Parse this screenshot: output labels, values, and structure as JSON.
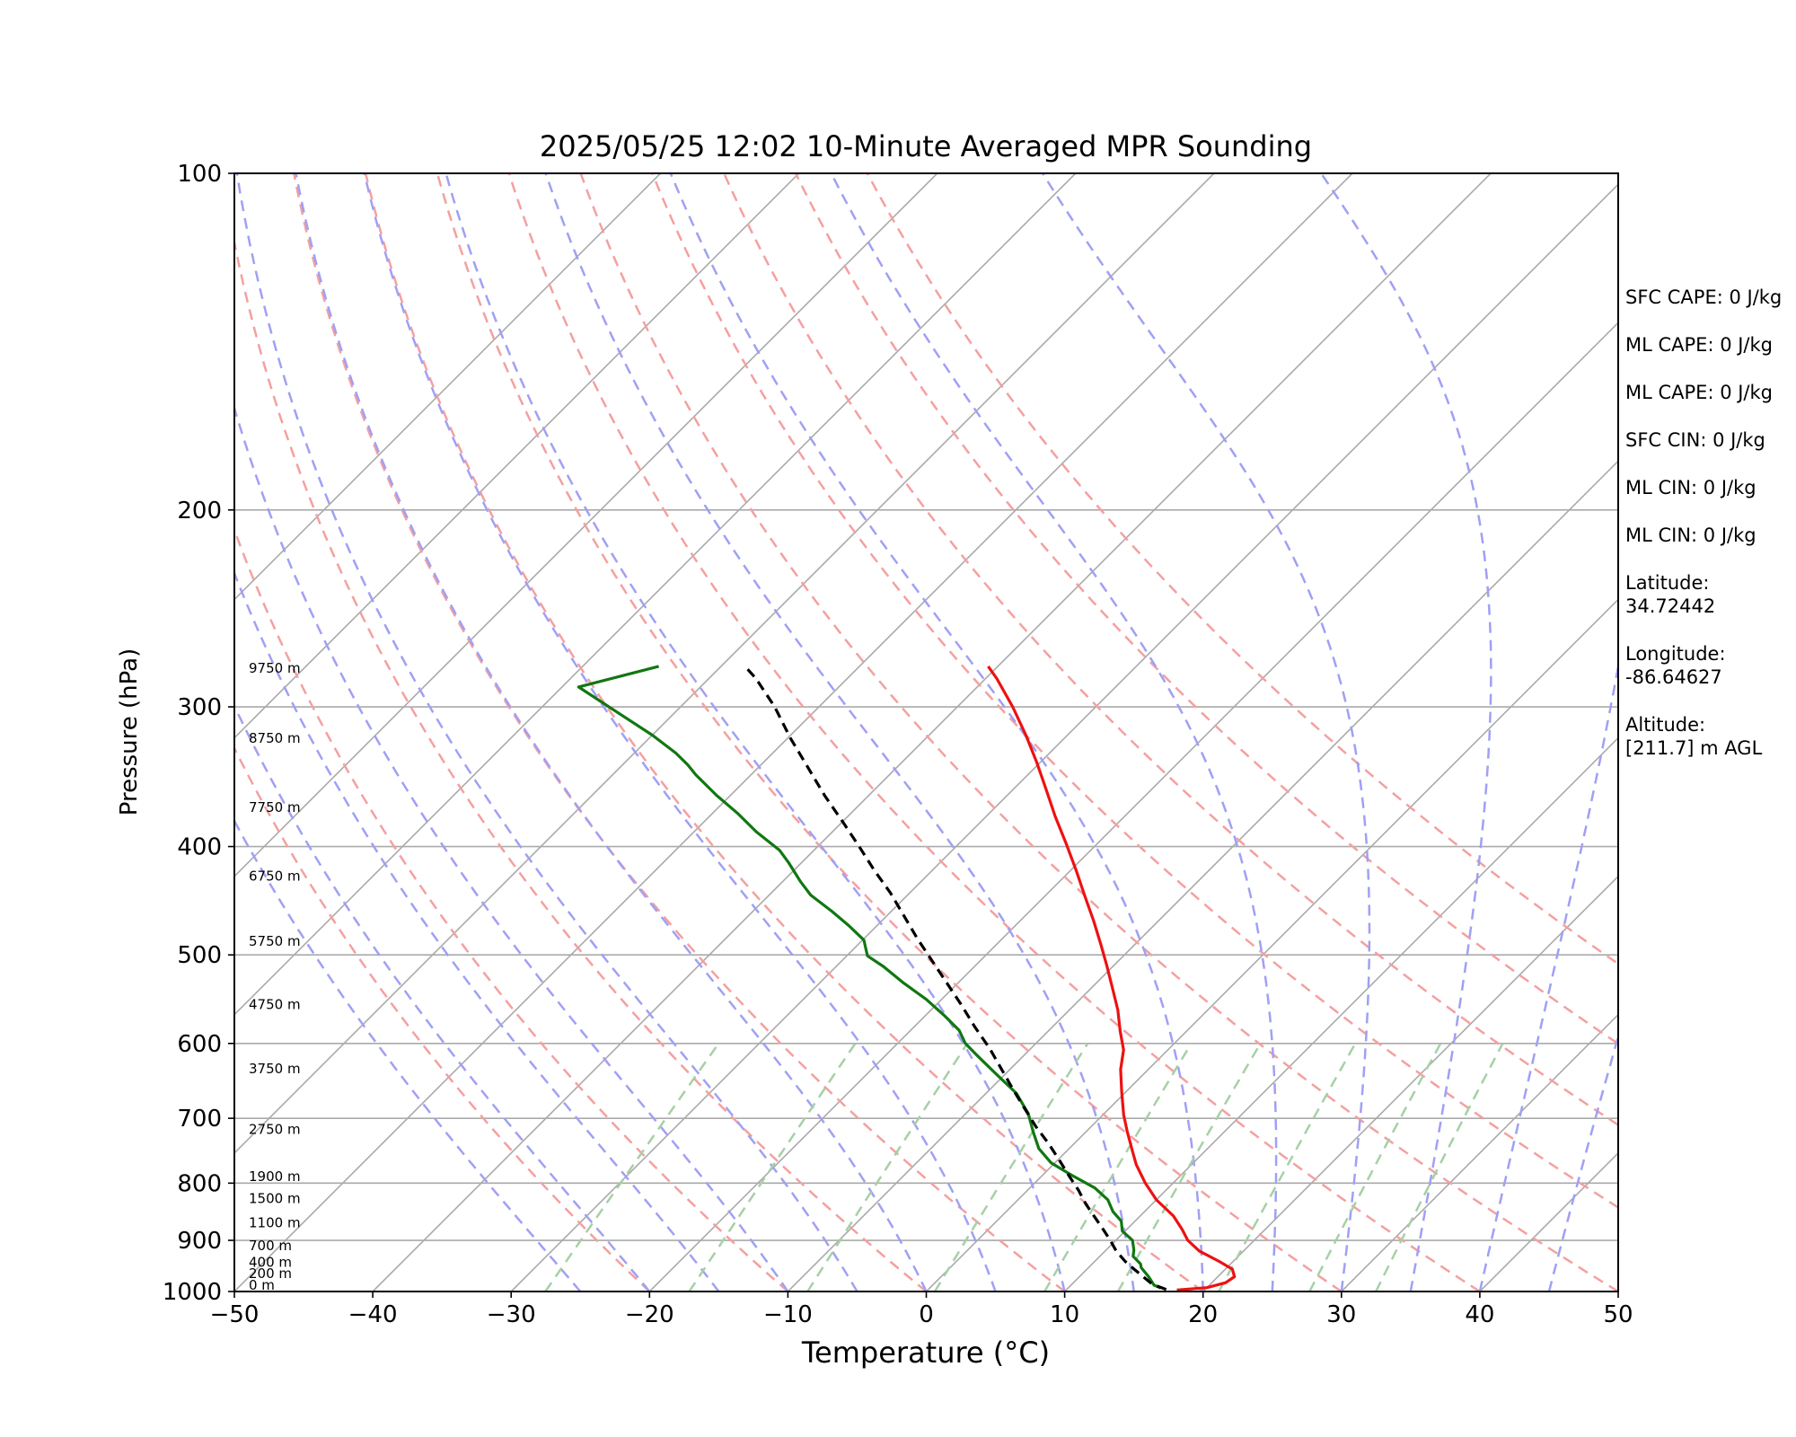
{
  "chart_data": {
    "type": "line",
    "chart_kind": "Skew-T log-P",
    "title": "2025/05/25 12:02 10-Minute Averaged MPR Sounding",
    "xlabel": "Temperature (°C)",
    "ylabel": "Pressure (hPa)",
    "xlim": [
      -50,
      50
    ],
    "ylim": [
      1000,
      100
    ],
    "y_scale": "log",
    "x_ticks": [
      "−50",
      "−40",
      "−30",
      "−20",
      "−10",
      "0",
      "10",
      "20",
      "30",
      "40",
      "50"
    ],
    "y_ticks": [
      "100",
      "200",
      "300",
      "400",
      "500",
      "600",
      "700",
      "800",
      "900",
      "1000"
    ],
    "y_tick_values": [
      100,
      200,
      300,
      400,
      500,
      600,
      700,
      800,
      900,
      1000
    ],
    "isotherm_temperatures": [
      -100,
      -90,
      -80,
      -70,
      -60,
      -50,
      -40,
      -30,
      -20,
      -10,
      0,
      10,
      20,
      30,
      40,
      50
    ],
    "dry_adiabat_thetas_c": [
      -20,
      -10,
      0,
      10,
      20,
      30,
      40,
      50,
      60,
      70,
      80,
      90
    ],
    "moist_adiabat_start_temps_c": [
      -25,
      -20,
      -15,
      -10,
      -5,
      0,
      5,
      10,
      15,
      20,
      25,
      30,
      35,
      40,
      45,
      50
    ],
    "mixing_ratio_lines_gkg": [
      0.4,
      1,
      2,
      4,
      7,
      10,
      16,
      24,
      32
    ],
    "height_labels": [
      {
        "label": "0 m",
        "pressure": 987
      },
      {
        "label": "200 m",
        "pressure": 964
      },
      {
        "label": "400 m",
        "pressure": 942
      },
      {
        "label": "700 m",
        "pressure": 910
      },
      {
        "label": "1100 m",
        "pressure": 868
      },
      {
        "label": "1500 m",
        "pressure": 826
      },
      {
        "label": "1900 m",
        "pressure": 789
      },
      {
        "label": "2750 m",
        "pressure": 716
      },
      {
        "label": "3750 m",
        "pressure": 632
      },
      {
        "label": "4750 m",
        "pressure": 554
      },
      {
        "label": "5750 m",
        "pressure": 486
      },
      {
        "label": "6750 m",
        "pressure": 425
      },
      {
        "label": "7750 m",
        "pressure": 369
      },
      {
        "label": "8750 m",
        "pressure": 320
      },
      {
        "label": "9750 m",
        "pressure": 277
      }
    ],
    "series": [
      {
        "role": "temperature",
        "color": "#ee1111",
        "style": "solid",
        "points": [
          [
            18.0,
            997
          ],
          [
            20.0,
            992
          ],
          [
            21.0,
            982
          ],
          [
            21.2,
            970
          ],
          [
            20.5,
            955
          ],
          [
            19.0,
            940
          ],
          [
            16.8,
            920
          ],
          [
            15.2,
            900
          ],
          [
            14.0,
            880
          ],
          [
            12.4,
            856
          ],
          [
            10.0,
            828
          ],
          [
            8.0,
            800
          ],
          [
            6.0,
            770
          ],
          [
            4.7,
            748
          ],
          [
            3.0,
            720
          ],
          [
            1.5,
            695
          ],
          [
            -0.3,
            663
          ],
          [
            -2.0,
            633
          ],
          [
            -3.2,
            608
          ],
          [
            -4.8,
            585
          ],
          [
            -6.5,
            560
          ],
          [
            -8.5,
            535
          ],
          [
            -10.6,
            510
          ],
          [
            -12.4,
            490
          ],
          [
            -14.7,
            466
          ],
          [
            -17.0,
            444
          ],
          [
            -19.5,
            421
          ],
          [
            -22.2,
            398
          ],
          [
            -25.0,
            376
          ],
          [
            -27.7,
            355
          ],
          [
            -30.3,
            336
          ],
          [
            -33.0,
            318
          ],
          [
            -36.0,
            300
          ],
          [
            -39.2,
            283
          ],
          [
            -40.7,
            276
          ]
        ]
      },
      {
        "role": "dewpoint",
        "color": "#117711",
        "style": "solid",
        "points": [
          [
            16.7,
            993
          ],
          [
            16.0,
            987
          ],
          [
            15.0,
            970
          ],
          [
            13.8,
            952
          ],
          [
            13.5,
            945
          ],
          [
            12.4,
            930
          ],
          [
            12.0,
            918
          ],
          [
            11.2,
            900
          ],
          [
            9.8,
            883
          ],
          [
            9.0,
            865
          ],
          [
            7.7,
            848
          ],
          [
            6.5,
            828
          ],
          [
            4.7,
            808
          ],
          [
            2.1,
            787
          ],
          [
            -0.3,
            767
          ],
          [
            -2.2,
            745
          ],
          [
            -3.8,
            720
          ],
          [
            -5.5,
            693
          ],
          [
            -7.8,
            665
          ],
          [
            -11.0,
            636
          ],
          [
            -13.5,
            614
          ],
          [
            -15.1,
            600
          ],
          [
            -16.5,
            584
          ],
          [
            -18.7,
            566
          ],
          [
            -21.1,
            548
          ],
          [
            -23.9,
            530
          ],
          [
            -26.6,
            512
          ],
          [
            -28.5,
            501
          ],
          [
            -29.9,
            485
          ],
          [
            -32.0,
            471
          ],
          [
            -34.3,
            457
          ],
          [
            -37.0,
            442
          ],
          [
            -38.7,
            430
          ],
          [
            -41.0,
            413
          ],
          [
            -42.5,
            403
          ],
          [
            -45.5,
            388
          ],
          [
            -48.1,
            374
          ],
          [
            -51.0,
            360
          ],
          [
            -54.0,
            345
          ],
          [
            -55.3,
            338
          ],
          [
            -57.0,
            330
          ],
          [
            -60.0,
            318
          ],
          [
            -64.0,
            304
          ],
          [
            -68.8,
            288
          ],
          [
            -64.5,
            276
          ]
        ]
      },
      {
        "role": "parcel",
        "color": "#000000",
        "style": "dashed",
        "points": [
          [
            17.2,
            996
          ],
          [
            15.8,
            985
          ],
          [
            14.6,
            970
          ],
          [
            13.4,
            955
          ],
          [
            12.2,
            940
          ],
          [
            10.8,
            920
          ],
          [
            9.6,
            900
          ],
          [
            8.3,
            880
          ],
          [
            6.8,
            858
          ],
          [
            5.2,
            835
          ],
          [
            3.7,
            812
          ],
          [
            2.1,
            790
          ],
          [
            0.2,
            764
          ],
          [
            -1.8,
            738
          ],
          [
            -4.0,
            712
          ],
          [
            -6.2,
            685
          ],
          [
            -8.3,
            660
          ],
          [
            -10.6,
            633
          ],
          [
            -13.0,
            606
          ],
          [
            -15.6,
            580
          ],
          [
            -18.3,
            553
          ],
          [
            -21.0,
            528
          ],
          [
            -23.6,
            505
          ],
          [
            -26.2,
            483
          ],
          [
            -28.8,
            461
          ],
          [
            -31.4,
            440
          ],
          [
            -34.2,
            420
          ],
          [
            -37.0,
            400
          ],
          [
            -40.0,
            380
          ],
          [
            -43.2,
            360
          ],
          [
            -46.4,
            340
          ],
          [
            -49.8,
            320
          ],
          [
            -53.2,
            300
          ],
          [
            -56.6,
            283
          ],
          [
            -58.5,
            275
          ]
        ]
      }
    ],
    "info_panel": {
      "sfc_cape": "SFC CAPE: 0 J/kg",
      "ml_cape_1": "ML CAPE: 0 J/kg",
      "ml_cape_2": "ML CAPE: 0 J/kg",
      "sfc_cin": "SFC CIN: 0 J/kg",
      "ml_cin_1": "ML CIN: 0 J/kg",
      "ml_cin_2": "ML CIN: 0 J/kg",
      "latitude_label": "Latitude:",
      "latitude_value": "34.72442",
      "longitude_label": "Longitude:",
      "longitude_value": "-86.64627",
      "altitude_label": "Altitude:",
      "altitude_value": "[211.7] m AGL"
    },
    "colors": {
      "isotherm": "#aaaaaa",
      "isobar": "#aaaaaa",
      "dry_adiabat": "#f4a0a0",
      "moist_adiabat": "#a0a0f4",
      "mixing_ratio": "#a6d0a6"
    }
  }
}
